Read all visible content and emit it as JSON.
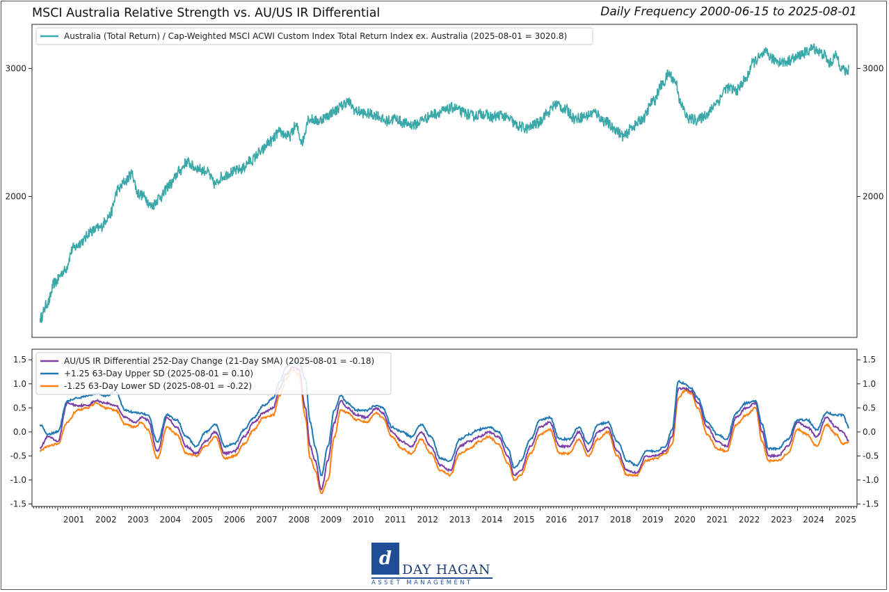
{
  "header": {
    "title": "MSCI Australia Relative Strength vs. AU/US IR Differential",
    "subtitle": "Daily Frequency 2000-06-15 to 2025-08-01"
  },
  "logo": {
    "mark": "d",
    "name": "DAY HAGAN",
    "tagline": "ASSET MANAGEMENT"
  },
  "colors": {
    "teal": "#3aa8a8",
    "purple": "#7b3fa8",
    "blue": "#1f77b4",
    "orange": "#ff7f0e",
    "brand": "#1f4e96"
  },
  "chart_data": [
    {
      "type": "line",
      "title": "MSCI Australia Relative Strength vs. AU/US IR Differential",
      "y_scale": "log",
      "ylim": [
        1280,
        3450
      ],
      "xlim": [
        2000.2,
        2025.85
      ],
      "y_ticks": [
        2000,
        3000
      ],
      "y_tick_labels": [
        "2000",
        "3000"
      ],
      "grid": false,
      "legend_position": "top-left",
      "series": [
        {
          "name": "Australia (Total Return) / Cap-Weighted MSCI ACWI Custom Index Total Return Index ex. Australia (2025-08-01 = 3020.8)",
          "color": "#3aa8a8",
          "x": [
            2000.45,
            2000.7,
            2000.9,
            2001.2,
            2001.5,
            2001.8,
            2002.0,
            2002.3,
            2002.6,
            2002.9,
            2003.1,
            2003.3,
            2003.5,
            2003.7,
            2003.9,
            2004.2,
            2004.5,
            2004.8,
            2005.0,
            2005.3,
            2005.6,
            2005.9,
            2006.1,
            2006.4,
            2006.7,
            2007.0,
            2007.3,
            2007.6,
            2007.9,
            2008.2,
            2008.4,
            2008.6,
            2008.8,
            2009.1,
            2009.3,
            2009.6,
            2009.8,
            2010.0,
            2010.3,
            2010.6,
            2010.9,
            2011.2,
            2011.5,
            2011.8,
            2012.1,
            2012.4,
            2012.7,
            2013.0,
            2013.3,
            2013.6,
            2013.9,
            2014.2,
            2014.5,
            2014.8,
            2015.0,
            2015.3,
            2015.6,
            2015.9,
            2016.2,
            2016.5,
            2016.8,
            2017.1,
            2017.4,
            2017.7,
            2018.0,
            2018.3,
            2018.6,
            2018.9,
            2019.2,
            2019.5,
            2019.8,
            2020.0,
            2020.2,
            2020.4,
            2020.6,
            2020.9,
            2021.2,
            2021.5,
            2021.8,
            2022.1,
            2022.4,
            2022.6,
            2022.8,
            2023.0,
            2023.3,
            2023.6,
            2023.9,
            2024.2,
            2024.5,
            2024.8,
            2025.0,
            2025.2,
            2025.4,
            2025.55,
            2025.6
          ],
          "y": [
            1360,
            1430,
            1520,
            1580,
            1700,
            1740,
            1790,
            1810,
            1880,
            2050,
            2100,
            2150,
            2020,
            2000,
            1940,
            2000,
            2080,
            2170,
            2230,
            2190,
            2170,
            2080,
            2130,
            2160,
            2180,
            2240,
            2300,
            2380,
            2450,
            2420,
            2500,
            2380,
            2560,
            2540,
            2570,
            2620,
            2660,
            2700,
            2620,
            2600,
            2590,
            2540,
            2560,
            2520,
            2510,
            2560,
            2600,
            2620,
            2650,
            2610,
            2580,
            2600,
            2570,
            2590,
            2560,
            2500,
            2480,
            2520,
            2600,
            2680,
            2630,
            2560,
            2580,
            2610,
            2540,
            2480,
            2420,
            2500,
            2560,
            2700,
            2850,
            2950,
            2880,
            2660,
            2560,
            2550,
            2600,
            2700,
            2820,
            2800,
            2900,
            3050,
            3100,
            3150,
            3080,
            3060,
            3100,
            3150,
            3200,
            3140,
            3050,
            3120,
            3000,
            2950,
            3020.8
          ]
        }
      ]
    },
    {
      "type": "line",
      "ylim": [
        -1.55,
        1.72
      ],
      "xlim": [
        2000.2,
        2025.85
      ],
      "y_ticks": [
        -1.5,
        -1.0,
        -0.5,
        0.0,
        0.5,
        1.0,
        1.5
      ],
      "y_tick_labels": [
        "-1.5",
        "-1.0",
        "-0.5",
        "0.0",
        "0.5",
        "1.0",
        "1.5"
      ],
      "x_ticks": [
        2001,
        2002,
        2003,
        2004,
        2005,
        2006,
        2007,
        2008,
        2009,
        2010,
        2011,
        2012,
        2013,
        2014,
        2015,
        2016,
        2017,
        2018,
        2019,
        2020,
        2021,
        2022,
        2023,
        2024,
        2025
      ],
      "x_tick_labels": [
        "2001",
        "2002",
        "2003",
        "2004",
        "2005",
        "2006",
        "2007",
        "2008",
        "2009",
        "2010",
        "2011",
        "2012",
        "2013",
        "2014",
        "2015",
        "2016",
        "2017",
        "2018",
        "2019",
        "2020",
        "2021",
        "2022",
        "2023",
        "2024",
        "2025"
      ],
      "grid": false,
      "legend_position": "top-left",
      "series": [
        {
          "name": "AU/US IR Differential 252-Day Change (21-Day SMA) (2025-08-01 = -0.18)",
          "color": "#7b3fa8",
          "x": [
            2000.45,
            2000.7,
            2001.0,
            2001.3,
            2001.6,
            2001.9,
            2002.2,
            2002.5,
            2002.8,
            2003.1,
            2003.4,
            2003.6,
            2003.8,
            2004.1,
            2004.4,
            2004.7,
            2005.0,
            2005.3,
            2005.6,
            2005.9,
            2006.2,
            2006.5,
            2006.8,
            2007.1,
            2007.4,
            2007.7,
            2007.9,
            2008.1,
            2008.3,
            2008.5,
            2008.7,
            2008.85,
            2009.0,
            2009.2,
            2009.4,
            2009.6,
            2009.8,
            2010.0,
            2010.3,
            2010.6,
            2010.9,
            2011.1,
            2011.4,
            2011.7,
            2012.0,
            2012.3,
            2012.6,
            2012.9,
            2013.2,
            2013.5,
            2013.8,
            2014.1,
            2014.4,
            2014.7,
            2015.0,
            2015.2,
            2015.4,
            2015.7,
            2016.0,
            2016.3,
            2016.6,
            2016.9,
            2017.2,
            2017.5,
            2017.8,
            2018.1,
            2018.4,
            2018.7,
            2019.0,
            2019.3,
            2019.6,
            2019.9,
            2020.1,
            2020.3,
            2020.5,
            2020.7,
            2020.9,
            2021.2,
            2021.5,
            2021.8,
            2022.1,
            2022.4,
            2022.7,
            2022.9,
            2023.1,
            2023.4,
            2023.7,
            2024.0,
            2024.3,
            2024.6,
            2024.9,
            2025.2,
            2025.4,
            2025.6
          ],
          "y": [
            -0.32,
            -0.1,
            -0.2,
            0.6,
            0.55,
            0.55,
            0.65,
            0.6,
            0.55,
            0.3,
            0.2,
            0.3,
            0.25,
            -0.4,
            0.3,
            0.1,
            -0.3,
            -0.45,
            -0.2,
            0.0,
            -0.45,
            -0.4,
            -0.1,
            0.2,
            0.4,
            0.5,
            0.9,
            1.2,
            1.35,
            1.3,
            0.5,
            -0.3,
            -0.6,
            -1.2,
            -0.6,
            0.2,
            0.65,
            0.5,
            0.35,
            0.3,
            0.5,
            0.4,
            0.0,
            -0.2,
            -0.3,
            0.0,
            -0.3,
            -0.7,
            -0.8,
            -0.3,
            -0.2,
            -0.1,
            0.0,
            -0.1,
            -0.5,
            -0.9,
            -0.8,
            -0.3,
            0.1,
            0.2,
            -0.3,
            -0.3,
            0.0,
            -0.4,
            0.0,
            0.1,
            -0.4,
            -0.8,
            -0.85,
            -0.5,
            -0.5,
            -0.4,
            -0.1,
            0.9,
            0.9,
            0.85,
            0.6,
            0.1,
            -0.2,
            -0.3,
            0.3,
            0.5,
            0.6,
            0.0,
            -0.5,
            -0.5,
            -0.3,
            0.2,
            0.1,
            -0.1,
            0.3,
            0.1,
            0.0,
            -0.18
          ]
        },
        {
          "name": "+1.25 63-Day Upper SD (2025-08-01 = 0.10)",
          "color": "#1f77b4",
          "x": [
            2000.45,
            2000.7,
            2001.0,
            2001.3,
            2001.6,
            2001.9,
            2002.2,
            2002.5,
            2002.8,
            2003.1,
            2003.4,
            2003.6,
            2003.8,
            2004.1,
            2004.4,
            2004.7,
            2005.0,
            2005.3,
            2005.6,
            2005.9,
            2006.2,
            2006.5,
            2006.8,
            2007.1,
            2007.4,
            2007.7,
            2007.9,
            2008.1,
            2008.3,
            2008.5,
            2008.7,
            2008.85,
            2009.0,
            2009.2,
            2009.4,
            2009.6,
            2009.8,
            2010.0,
            2010.3,
            2010.6,
            2010.9,
            2011.1,
            2011.4,
            2011.7,
            2012.0,
            2012.3,
            2012.6,
            2012.9,
            2013.2,
            2013.5,
            2013.8,
            2014.1,
            2014.4,
            2014.7,
            2015.0,
            2015.2,
            2015.4,
            2015.7,
            2016.0,
            2016.3,
            2016.6,
            2016.9,
            2017.2,
            2017.5,
            2017.8,
            2018.1,
            2018.4,
            2018.7,
            2019.0,
            2019.3,
            2019.6,
            2019.9,
            2020.1,
            2020.3,
            2020.5,
            2020.7,
            2020.9,
            2021.2,
            2021.5,
            2021.8,
            2022.1,
            2022.4,
            2022.7,
            2022.9,
            2023.1,
            2023.4,
            2023.7,
            2024.0,
            2024.3,
            2024.6,
            2024.9,
            2025.2,
            2025.4,
            2025.6
          ],
          "y": [
            0.15,
            -0.05,
            0.0,
            0.65,
            0.7,
            0.75,
            0.8,
            0.75,
            0.85,
            0.45,
            0.4,
            0.4,
            0.35,
            -0.2,
            0.35,
            0.25,
            -0.1,
            -0.3,
            0.0,
            0.15,
            -0.3,
            -0.25,
            0.05,
            0.3,
            0.55,
            0.7,
            1.05,
            1.35,
            1.45,
            1.45,
            1.1,
            0.2,
            -0.3,
            -0.9,
            -0.3,
            0.45,
            0.75,
            0.6,
            0.45,
            0.45,
            0.55,
            0.5,
            0.1,
            0.0,
            -0.1,
            0.15,
            -0.1,
            -0.55,
            -0.6,
            -0.15,
            -0.05,
            0.05,
            0.1,
            0.0,
            -0.35,
            -0.75,
            -0.6,
            -0.15,
            0.25,
            0.3,
            -0.15,
            -0.15,
            0.1,
            -0.25,
            0.15,
            0.2,
            -0.2,
            -0.6,
            -0.7,
            -0.4,
            -0.4,
            -0.3,
            0.05,
            1.05,
            1.0,
            0.9,
            0.7,
            0.2,
            -0.05,
            -0.15,
            0.4,
            0.6,
            0.65,
            0.15,
            -0.35,
            -0.35,
            -0.15,
            0.25,
            0.25,
            0.05,
            0.4,
            0.35,
            0.35,
            0.1
          ]
        },
        {
          "name": "-1.25 63-Day Lower SD (2025-08-01 = -0.22)",
          "color": "#ff7f0e",
          "x": [
            2000.45,
            2000.7,
            2001.0,
            2001.3,
            2001.6,
            2001.9,
            2002.2,
            2002.5,
            2002.8,
            2003.1,
            2003.4,
            2003.6,
            2003.8,
            2004.1,
            2004.4,
            2004.7,
            2005.0,
            2005.3,
            2005.6,
            2005.9,
            2006.2,
            2006.5,
            2006.8,
            2007.1,
            2007.4,
            2007.7,
            2007.9,
            2008.1,
            2008.3,
            2008.5,
            2008.7,
            2008.85,
            2009.0,
            2009.2,
            2009.4,
            2009.6,
            2009.8,
            2010.0,
            2010.3,
            2010.6,
            2010.9,
            2011.1,
            2011.4,
            2011.7,
            2012.0,
            2012.3,
            2012.6,
            2012.9,
            2013.2,
            2013.5,
            2013.8,
            2014.1,
            2014.4,
            2014.7,
            2015.0,
            2015.2,
            2015.4,
            2015.7,
            2016.0,
            2016.3,
            2016.6,
            2016.9,
            2017.2,
            2017.5,
            2017.8,
            2018.1,
            2018.4,
            2018.7,
            2019.0,
            2019.3,
            2019.6,
            2019.9,
            2020.1,
            2020.3,
            2020.5,
            2020.7,
            2020.9,
            2021.2,
            2021.5,
            2021.8,
            2022.1,
            2022.4,
            2022.7,
            2022.9,
            2023.1,
            2023.4,
            2023.7,
            2024.0,
            2024.3,
            2024.6,
            2024.9,
            2025.2,
            2025.4,
            2025.6
          ],
          "y": [
            -0.38,
            -0.3,
            -0.25,
            0.2,
            0.45,
            0.5,
            0.6,
            0.5,
            0.45,
            0.15,
            0.1,
            0.2,
            0.05,
            -0.55,
            0.1,
            -0.05,
            -0.45,
            -0.5,
            -0.3,
            -0.1,
            -0.55,
            -0.5,
            -0.25,
            0.05,
            0.3,
            0.35,
            0.75,
            1.1,
            1.3,
            1.2,
            0.3,
            -0.55,
            -0.8,
            -1.28,
            -1.0,
            -0.1,
            0.45,
            0.4,
            0.25,
            0.2,
            0.4,
            0.3,
            -0.1,
            -0.35,
            -0.45,
            -0.15,
            -0.45,
            -0.8,
            -0.9,
            -0.45,
            -0.35,
            -0.2,
            -0.1,
            -0.25,
            -0.65,
            -1.0,
            -0.9,
            -0.45,
            -0.05,
            0.05,
            -0.45,
            -0.45,
            -0.15,
            -0.5,
            -0.15,
            0.0,
            -0.5,
            -0.9,
            -0.9,
            -0.6,
            -0.55,
            -0.45,
            -0.25,
            0.7,
            0.85,
            0.8,
            0.5,
            -0.05,
            -0.35,
            -0.4,
            0.15,
            0.35,
            0.5,
            -0.2,
            -0.6,
            -0.6,
            -0.45,
            0.05,
            -0.05,
            -0.3,
            0.15,
            -0.05,
            -0.25,
            -0.22
          ]
        }
      ]
    }
  ]
}
